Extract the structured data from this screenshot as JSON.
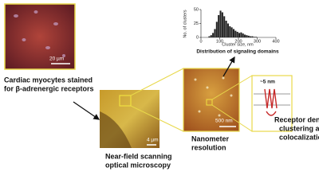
{
  "figure": {
    "captions": {
      "myocytes": [
        "Cardiac myocytes stained",
        "for β-adrenergic receptors"
      ],
      "nsom": [
        "Near-field scanning",
        "optical microscopy"
      ],
      "nanometer": [
        "Nanometer",
        "resolution"
      ],
      "receptor": [
        "Receptor density,",
        "clustering and",
        "colocalization"
      ]
    },
    "scale_bars": {
      "myocytes": "20 µm",
      "nsom": "4 µm",
      "nanometer": "500 nm",
      "membrane": "~5 nm"
    },
    "histogram": {
      "type": "histogram",
      "title": "Distribution of signaling domains",
      "x_label": "Cluster size, nm",
      "y_label": "No. of clusters",
      "bins": [
        40,
        50,
        60,
        70,
        80,
        90,
        100,
        110,
        120,
        130,
        140,
        150,
        160,
        170,
        180,
        190,
        200,
        210,
        220,
        230,
        240,
        250,
        260,
        270,
        280,
        290,
        300
      ],
      "counts": [
        2,
        4,
        8,
        15,
        28,
        40,
        48,
        45,
        38,
        30,
        25,
        20,
        18,
        15,
        12,
        10,
        8,
        9,
        7,
        5,
        4,
        3,
        2,
        2,
        1,
        1
      ],
      "color": "#222222",
      "xlim": [
        0,
        400
      ],
      "xticks": [
        0,
        100,
        200,
        300,
        400
      ],
      "ylim": [
        0,
        50
      ],
      "yticks": [
        0,
        25,
        50
      ]
    }
  }
}
